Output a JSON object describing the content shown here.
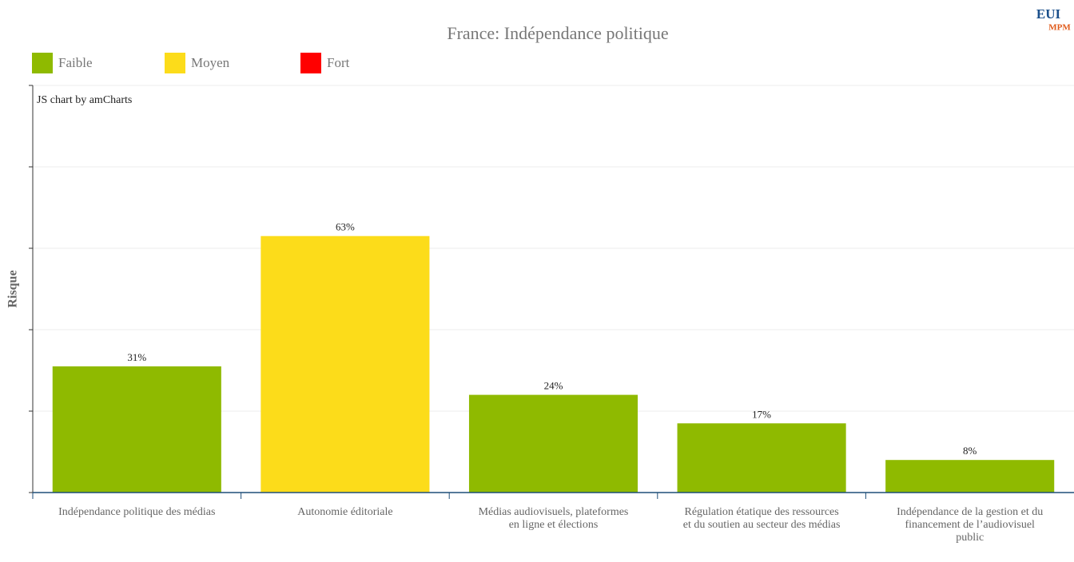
{
  "chart_data": {
    "type": "bar",
    "title": "France: Indépendance politique",
    "logo": [
      "EUI",
      "MPM"
    ],
    "credit": "JS chart by amCharts",
    "y_label": "Risque",
    "legend": [
      {
        "name": "Faible",
        "color": "#8fba00"
      },
      {
        "name": "Moyen",
        "color": "#fcdc1a"
      },
      {
        "name": "Fort",
        "color": "#ff0000"
      }
    ],
    "categories": [
      "Indépendance politique des médias",
      "Autonomie éditoriale",
      "Médias audiovisuels, plateformes en ligne et élections",
      "Régulation étatique des ressources et du soutien au secteur des médias",
      "Indépendance de la gestion et du financement de l’audiovisuel public"
    ],
    "values": [
      31,
      63,
      24,
      17,
      8
    ],
    "value_labels": [
      "31%",
      "63%",
      "24%",
      "17%",
      "8%"
    ],
    "colors": [
      "#8fba00",
      "#fcdc1a",
      "#8fba00",
      "#8fba00",
      "#8fba00"
    ],
    "ylim": [
      0,
      100
    ],
    "yticks": [
      0,
      20,
      40,
      60,
      80,
      100
    ],
    "grid": true
  }
}
